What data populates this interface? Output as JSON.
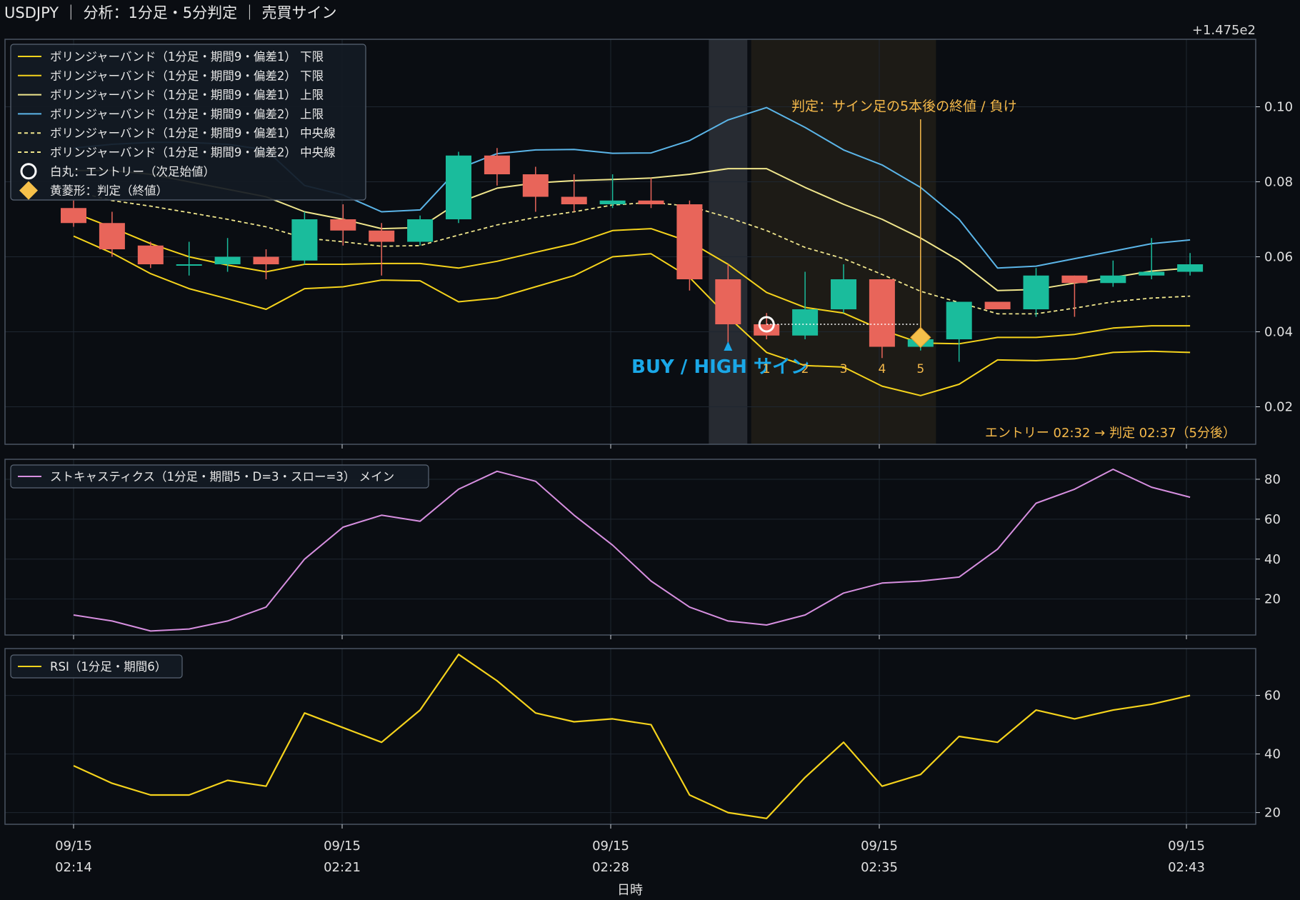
{
  "title": "USDJPY ｜ 分析：1分足・5分判定 ｜ 売買サイン",
  "offset_label": "+1.475e2",
  "xlabel": "日時",
  "colors": {
    "background": "#0a0d12",
    "frame": "#4a5563",
    "grid": "#1f2630",
    "bull": "#1abc9c",
    "bear": "#e8655a",
    "bb_yellow": "#f5d31c",
    "bb_light": "#f0e68c",
    "bb_blue": "#5bb5e8",
    "stoch": "#d78fe0",
    "rsi": "#f5d31c",
    "signal": "#1aa8e8",
    "judge": "#f5b94a",
    "sign_band": "#2a2f36",
    "judge_band": "#1d1b16"
  },
  "x_ticks": [
    {
      "date": "09/15",
      "time": "02:14"
    },
    {
      "date": "09/15",
      "time": "02:21"
    },
    {
      "date": "09/15",
      "time": "02:28"
    },
    {
      "date": "09/15",
      "time": "02:35"
    },
    {
      "date": "09/15",
      "time": "02:43"
    }
  ],
  "annotations": {
    "signal_label": "BUY / HIGH サイン",
    "judge_label": "判定：サイン足の5本後の終値 / 負け",
    "bottom_note": "エントリー 02:32 → 判定 02:37（5分後）",
    "counts": [
      "1",
      "2",
      "3",
      "4",
      "5"
    ]
  },
  "legend_price": [
    {
      "label": "ボリンジャーバンド（1分足・期間9・偏差1） 下限",
      "style": "line",
      "color": "#f5d31c"
    },
    {
      "label": "ボリンジャーバンド（1分足・期間9・偏差2） 下限",
      "style": "line",
      "color": "#f5d31c"
    },
    {
      "label": "ボリンジャーバンド（1分足・期間9・偏差1） 上限",
      "style": "line",
      "color": "#f0e68c"
    },
    {
      "label": "ボリンジャーバンド（1分足・期間9・偏差2） 上限",
      "style": "line",
      "color": "#5bb5e8"
    },
    {
      "label": "ボリンジャーバンド（1分足・期間9・偏差1） 中央線",
      "style": "dash",
      "color": "#f0e68c"
    },
    {
      "label": "ボリンジャーバンド（1分足・期間9・偏差2） 中央線",
      "style": "dash",
      "color": "#f0e68c"
    },
    {
      "label": "白丸：エントリー（次足始値）",
      "style": "circle",
      "color": "#ffffff"
    },
    {
      "label": "黄菱形：判定（終値）",
      "style": "diamond",
      "color": "#f5c04a"
    }
  ],
  "legend_stoch": "ストキャスティクス（1分足・期間5・D=3・スロー=3） メイン",
  "legend_rsi": "RSI（1分足・期間6）",
  "chart_data": [
    {
      "type": "candlestick",
      "name": "price",
      "x_unit": "minute index (0 = 09/15 02:14)",
      "y_offset": 147.5,
      "ylim": [
        0.01,
        0.118
      ],
      "yticks": [
        0.02,
        0.04,
        0.06,
        0.08,
        0.1
      ],
      "ytick_labels": [
        "0.02",
        "0.04",
        "0.06",
        "0.08",
        "0.10"
      ],
      "grid": true,
      "legend_position": "top-left",
      "x": [
        0,
        1,
        2,
        3,
        4,
        5,
        6,
        7,
        8,
        9,
        10,
        11,
        12,
        13,
        14,
        15,
        16,
        17,
        18,
        19,
        20,
        21,
        22,
        23,
        24,
        25,
        26,
        27,
        28,
        29
      ],
      "ohlc": [
        [
          0.073,
          0.075,
          0.068,
          0.069
        ],
        [
          0.069,
          0.072,
          0.06,
          0.062
        ],
        [
          0.063,
          0.064,
          0.057,
          0.058
        ],
        [
          0.058,
          0.064,
          0.055,
          0.058
        ],
        [
          0.058,
          0.065,
          0.056,
          0.06
        ],
        [
          0.06,
          0.062,
          0.054,
          0.058
        ],
        [
          0.059,
          0.072,
          0.058,
          0.07
        ],
        [
          0.07,
          0.074,
          0.063,
          0.067
        ],
        [
          0.067,
          0.069,
          0.055,
          0.064
        ],
        [
          0.064,
          0.071,
          0.063,
          0.07
        ],
        [
          0.07,
          0.088,
          0.069,
          0.087
        ],
        [
          0.087,
          0.089,
          0.079,
          0.082
        ],
        [
          0.082,
          0.084,
          0.072,
          0.076
        ],
        [
          0.076,
          0.082,
          0.072,
          0.074
        ],
        [
          0.074,
          0.082,
          0.073,
          0.075
        ],
        [
          0.075,
          0.081,
          0.073,
          0.074
        ],
        [
          0.074,
          0.075,
          0.051,
          0.054
        ],
        [
          0.054,
          0.058,
          0.036,
          0.042
        ],
        [
          0.042,
          0.045,
          0.038,
          0.039
        ],
        [
          0.039,
          0.056,
          0.038,
          0.046
        ],
        [
          0.046,
          0.058,
          0.045,
          0.054
        ],
        [
          0.054,
          0.054,
          0.033,
          0.036
        ],
        [
          0.036,
          0.039,
          0.035,
          0.038
        ],
        [
          0.038,
          0.048,
          0.032,
          0.048
        ],
        [
          0.048,
          0.048,
          0.046,
          0.046
        ],
        [
          0.046,
          0.057,
          0.044,
          0.055
        ],
        [
          0.055,
          0.055,
          0.044,
          0.053
        ],
        [
          0.053,
          0.059,
          0.052,
          0.055
        ],
        [
          0.055,
          0.065,
          0.054,
          0.056
        ],
        [
          0.056,
          0.061,
          0.055,
          0.058
        ]
      ],
      "bands": {
        "lower1": [
          0.0655,
          0.061,
          0.0555,
          0.0515,
          0.0488,
          0.046,
          0.0515,
          0.052,
          0.0538,
          0.0536,
          0.048,
          0.049,
          0.052,
          0.055,
          0.06,
          0.0608,
          0.0545,
          0.044,
          0.0345,
          0.031,
          0.0306,
          0.0255,
          0.023,
          0.026,
          0.0325,
          0.0323,
          0.0328,
          0.0345,
          0.0348,
          0.0345
        ],
        "lower2": [
          0.0718,
          0.0678,
          0.0635,
          0.06,
          0.0578,
          0.056,
          0.058,
          0.058,
          0.0582,
          0.0582,
          0.057,
          0.0588,
          0.0612,
          0.0635,
          0.067,
          0.0675,
          0.064,
          0.058,
          0.0505,
          0.0465,
          0.045,
          0.0405,
          0.037,
          0.0368,
          0.0385,
          0.0385,
          0.0393,
          0.041,
          0.0416,
          0.0416
        ],
        "upper1": [
          0.083,
          0.083,
          0.082,
          0.08,
          0.078,
          0.076,
          0.072,
          0.07,
          0.0675,
          0.0678,
          0.0745,
          0.0783,
          0.0797,
          0.0803,
          0.0806,
          0.081,
          0.082,
          0.0835,
          0.0835,
          0.0785,
          0.074,
          0.07,
          0.065,
          0.059,
          0.051,
          0.0513,
          0.053,
          0.0545,
          0.0562,
          0.057
        ],
        "upper2": [
          0.089,
          0.09,
          0.0905,
          0.0905,
          0.09,
          0.0885,
          0.079,
          0.0765,
          0.072,
          0.0725,
          0.0835,
          0.0875,
          0.0885,
          0.0886,
          0.0876,
          0.0877,
          0.091,
          0.0965,
          0.0998,
          0.0945,
          0.0885,
          0.0845,
          0.0785,
          0.07,
          0.057,
          0.0575,
          0.0595,
          0.0615,
          0.0635,
          0.0645
        ],
        "mid1": [
          0.0775,
          0.075,
          0.0735,
          0.0718,
          0.07,
          0.068,
          0.065,
          0.064,
          0.0628,
          0.063,
          0.0658,
          0.0685,
          0.0705,
          0.072,
          0.0738,
          0.0745,
          0.0735,
          0.0705,
          0.067,
          0.0625,
          0.0595,
          0.0553,
          0.0508,
          0.0478,
          0.0448,
          0.0448,
          0.0463,
          0.048,
          0.049,
          0.0495
        ],
        "mid2": [
          0.0775,
          0.075,
          0.0735,
          0.0718,
          0.07,
          0.068,
          0.065,
          0.064,
          0.0628,
          0.063,
          0.0658,
          0.0685,
          0.0705,
          0.072,
          0.0738,
          0.0745,
          0.0735,
          0.0705,
          0.067,
          0.0625,
          0.0595,
          0.0553,
          0.0508,
          0.0478,
          0.0448,
          0.0448,
          0.0463,
          0.048,
          0.049,
          0.0495
        ]
      },
      "signal": {
        "bar": 17,
        "direction": "BUY / HIGH"
      },
      "entry": {
        "bar": 18,
        "price": 0.042
      },
      "judge": {
        "bar": 22,
        "price": 0.0385,
        "result": "負け"
      },
      "sign_band": [
        16.5,
        17.5
      ],
      "judge_band": [
        17.6,
        22.4
      ]
    },
    {
      "type": "line",
      "name": "stochastic",
      "ylim": [
        2,
        90
      ],
      "yticks": [
        20,
        40,
        60,
        80
      ],
      "ytick_labels": [
        "20",
        "40",
        "60",
        "80"
      ],
      "values": [
        12,
        9,
        4,
        5,
        9,
        16,
        40,
        56,
        62,
        59,
        75,
        84,
        79,
        62,
        47,
        29,
        16,
        9,
        7,
        12,
        23,
        28,
        29,
        31,
        45,
        68,
        75,
        85,
        76,
        71
      ]
    },
    {
      "type": "line",
      "name": "rsi",
      "ylim": [
        16,
        76
      ],
      "yticks": [
        20,
        40,
        60
      ],
      "ytick_labels": [
        "20",
        "40",
        "60"
      ],
      "values": [
        36,
        30,
        26,
        26,
        31,
        29,
        54,
        49,
        44,
        55,
        74,
        65,
        54,
        51,
        52,
        50,
        26,
        20,
        18,
        32,
        44,
        29,
        33,
        46,
        44,
        55,
        52,
        55,
        57,
        60
      ]
    }
  ]
}
